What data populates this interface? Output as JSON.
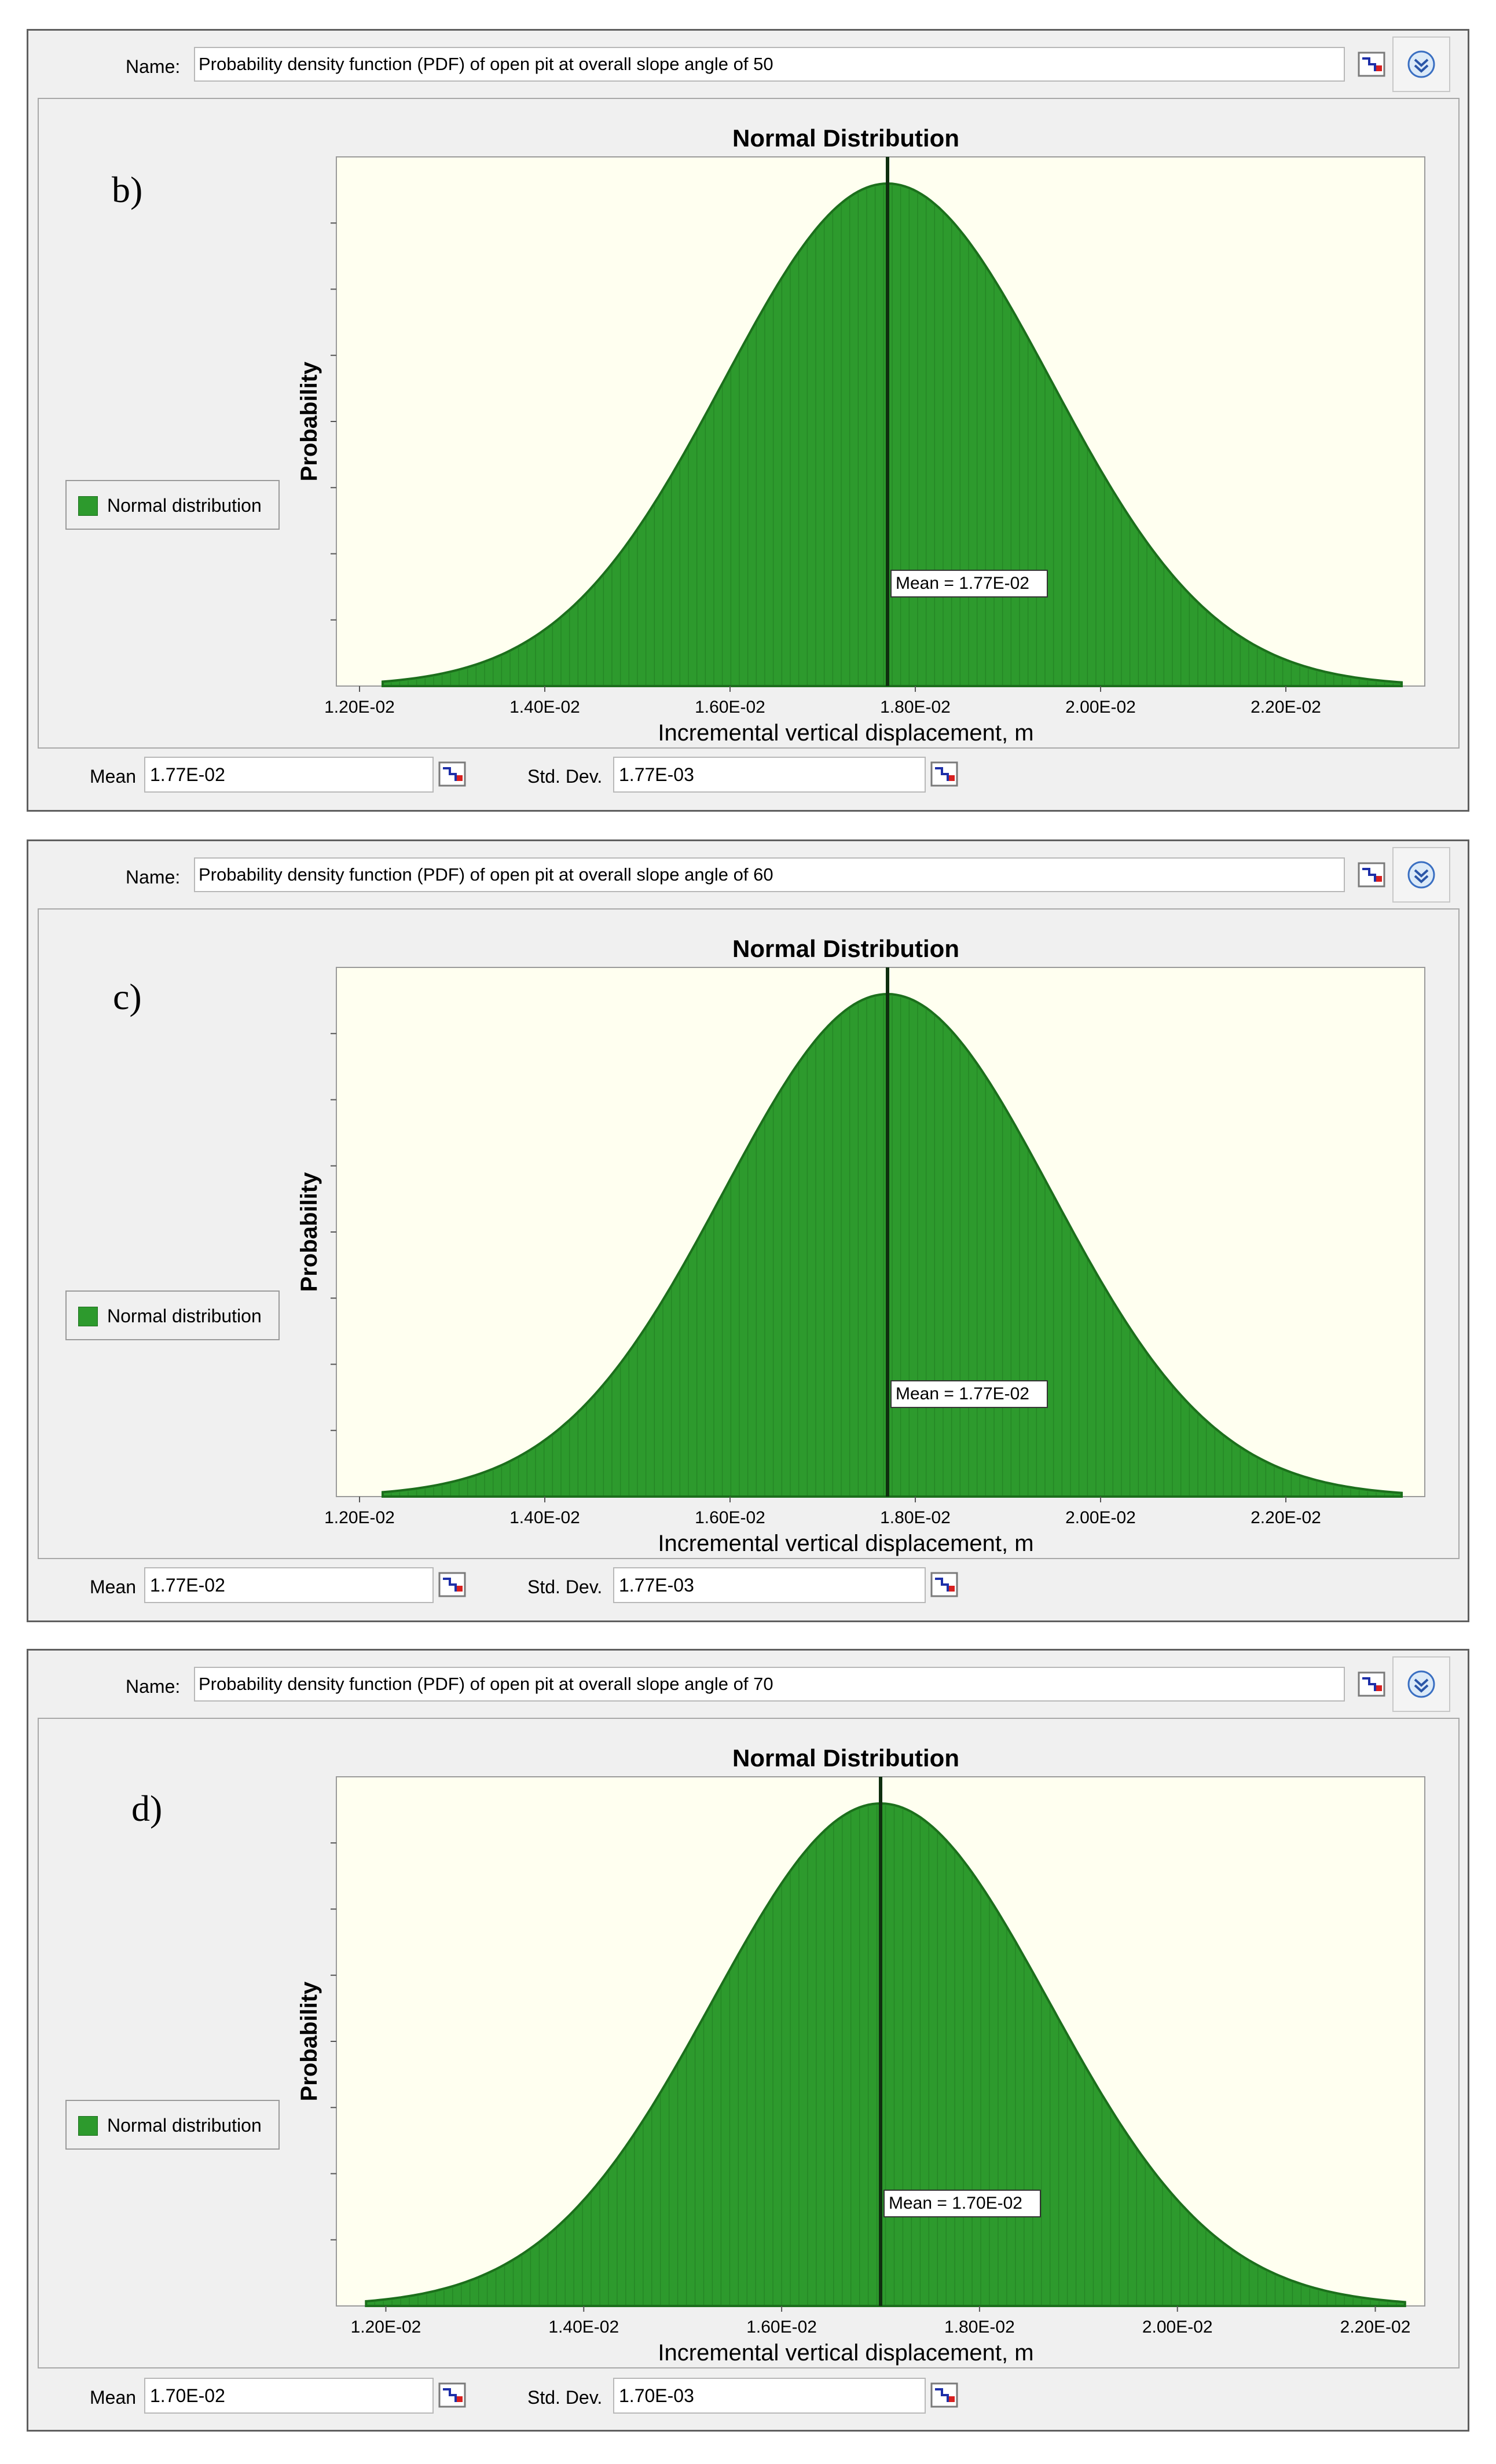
{
  "panels": [
    {
      "letter": "b)",
      "name_label": "Name:",
      "name_value": "Probability density function (PDF) of open pit at overall slope angle of 50",
      "legend_label": "Normal distribution",
      "mean_label": "Mean",
      "mean_value": "1.77E-02",
      "std_label": "Std. Dev.",
      "std_value": "1.77E-03"
    },
    {
      "letter": "c)",
      "name_label": "Name:",
      "name_value": "Probability density function (PDF) of open pit at overall slope angle of 60",
      "legend_label": "Normal distribution",
      "mean_label": "Mean",
      "mean_value": "1.77E-02",
      "std_label": "Std. Dev.",
      "std_value": "1.77E-03"
    },
    {
      "letter": "d)",
      "name_label": "Name:",
      "name_value": "Probability density function (PDF) of open pit at overall slope angle of 70",
      "legend_label": "Normal distribution",
      "mean_label": "Mean",
      "mean_value": "1.70E-02",
      "std_label": "Std. Dev.",
      "std_value": "1.70E-03"
    }
  ],
  "colors": {
    "fill": "#2d9a2d",
    "fill_dark": "#1c6f1c",
    "plot_bg": "#fffff0",
    "mean_line": "#0f2f0f"
  },
  "chart_data": [
    {
      "type": "area",
      "title": "Normal Distribution",
      "xlabel": "Incremental vertical displacement, m",
      "ylabel": "Probability",
      "series": [
        {
          "name": "Normal distribution",
          "mean": 0.0177,
          "std": 0.00177
        }
      ],
      "xlim": [
        0.01175,
        0.0235
      ],
      "xticks": [
        0.012,
        0.014,
        0.016,
        0.018,
        0.02,
        0.022
      ],
      "xtick_labels": [
        "1.20E-02",
        "1.40E-02",
        "1.60E-02",
        "1.80E-02",
        "2.00E-02",
        "2.20E-02"
      ],
      "x_range": [
        0.01225,
        0.02325
      ],
      "mean_annotation": "Mean = 1.77E-02",
      "legend": "left",
      "grid": false
    },
    {
      "type": "area",
      "title": "Normal Distribution",
      "xlabel": "Incremental vertical displacement, m",
      "ylabel": "Probability",
      "series": [
        {
          "name": "Normal distribution",
          "mean": 0.0177,
          "std": 0.00177
        }
      ],
      "xlim": [
        0.01175,
        0.0235
      ],
      "xticks": [
        0.012,
        0.014,
        0.016,
        0.018,
        0.02,
        0.022
      ],
      "xtick_labels": [
        "1.20E-02",
        "1.40E-02",
        "1.60E-02",
        "1.80E-02",
        "2.00E-02",
        "2.20E-02"
      ],
      "x_range": [
        0.01225,
        0.02325
      ],
      "mean_annotation": "Mean = 1.77E-02",
      "legend": "left",
      "grid": false
    },
    {
      "type": "area",
      "title": "Normal Distribution",
      "xlabel": "Incremental vertical displacement, m",
      "ylabel": "Probability",
      "series": [
        {
          "name": "Normal distribution",
          "mean": 0.017,
          "std": 0.0017
        }
      ],
      "xlim": [
        0.0115,
        0.0225
      ],
      "xticks": [
        0.012,
        0.014,
        0.016,
        0.018,
        0.02,
        0.022
      ],
      "xtick_labels": [
        "1.20E-02",
        "1.40E-02",
        "1.60E-02",
        "1.80E-02",
        "2.00E-02",
        "2.20E-02"
      ],
      "x_range": [
        0.0118,
        0.0223
      ],
      "mean_annotation": "Mean = 1.70E-02",
      "legend": "left",
      "grid": false
    }
  ]
}
